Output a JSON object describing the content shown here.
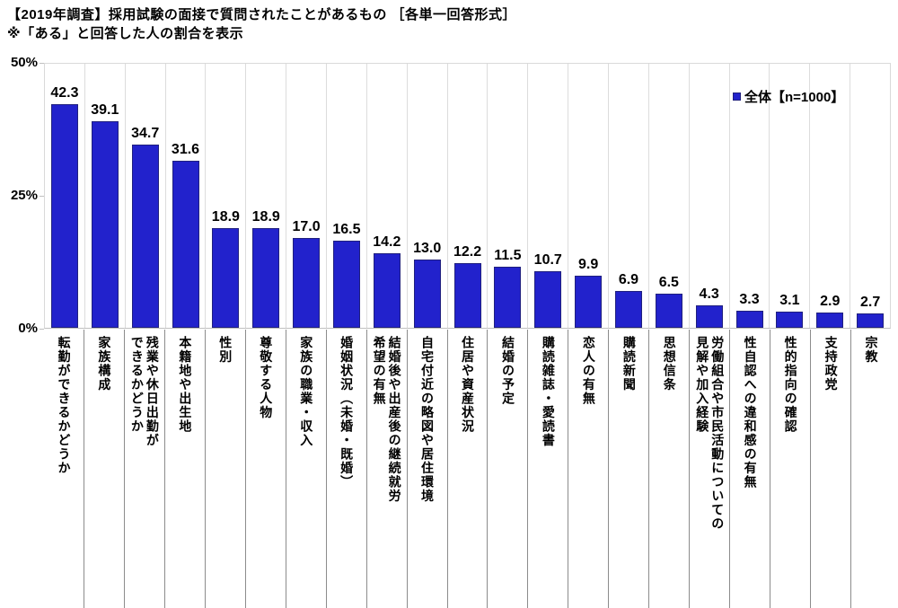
{
  "title": "【2019年調査】採用試験の面接で質問されたことがあるもの ［各単一回答形式］",
  "subtitle": "※「ある」と回答した人の割合を表示",
  "legend": {
    "label": "全体【n=1000】",
    "marker_color": "#2222cc"
  },
  "y_axis": {
    "tick_labels": [
      "50%",
      "25%",
      "0%"
    ],
    "max_percent": 50
  },
  "chart_data": {
    "type": "bar",
    "title": "【2019年調査】採用試験の面接で質問されたことがあるもの ［各単一回答形式］",
    "subtitle": "※「ある」と回答した人の割合を表示",
    "legend_entries": [
      "全体【n=1000】"
    ],
    "legend_position": "top-right inside plot",
    "xlabel": "",
    "ylabel": "%",
    "ylim": [
      0,
      50
    ],
    "yticks": [
      0,
      25,
      50
    ],
    "grid": "vertical category separators only",
    "bar_color": "#2222cc",
    "bar_border_color": "#20207e",
    "categories": [
      "転勤ができるかどうか",
      "家族構成",
      "残業や休日出勤が\nできるかどうか",
      "本籍地や出生地",
      "性別",
      "尊敬する人物",
      "家族の職業・収入",
      "婚姻状況（未婚・既婚）",
      "結婚後や出産後の継続就労\n希望の有無",
      "自宅付近の略図や居住環境",
      "住居や資産状況",
      "結婚の予定",
      "購読雑誌・愛読書",
      "恋人の有無",
      "購読新聞",
      "思想信条",
      "労働組合や市民活動についての\n見解や加入経験",
      "性自認への違和感の有無",
      "性的指向の確認",
      "支持政党",
      "宗教"
    ],
    "values": [
      42.3,
      39.1,
      34.7,
      31.6,
      18.9,
      18.9,
      17.0,
      16.5,
      14.2,
      13.0,
      12.2,
      11.5,
      10.7,
      9.9,
      6.9,
      6.5,
      4.3,
      3.3,
      3.1,
      2.9,
      2.7
    ]
  }
}
